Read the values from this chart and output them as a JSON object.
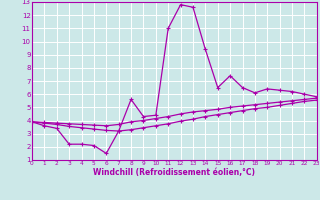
{
  "xlabel": "Windchill (Refroidissement éolien,°C)",
  "xlim": [
    0,
    23
  ],
  "ylim": [
    1,
    13
  ],
  "xticks": [
    0,
    1,
    2,
    3,
    4,
    5,
    6,
    7,
    8,
    9,
    10,
    11,
    12,
    13,
    14,
    15,
    16,
    17,
    18,
    19,
    20,
    21,
    22,
    23
  ],
  "yticks": [
    1,
    2,
    3,
    4,
    5,
    6,
    7,
    8,
    9,
    10,
    11,
    12,
    13
  ],
  "background_color": "#cce8e8",
  "line_color": "#aa00aa",
  "grid_color": "#ffffff",
  "line1_x": [
    0,
    1,
    2,
    3,
    4,
    5,
    6,
    7,
    8,
    9,
    10,
    11,
    12,
    13,
    14,
    15,
    16,
    17,
    18,
    19,
    20,
    21,
    22,
    23
  ],
  "line1_y": [
    3.9,
    3.6,
    3.4,
    2.2,
    2.2,
    2.1,
    1.5,
    3.2,
    5.6,
    4.3,
    4.4,
    11.0,
    12.8,
    12.6,
    9.4,
    6.5,
    7.4,
    6.5,
    6.1,
    6.4,
    6.3,
    6.2,
    6.0,
    5.8
  ],
  "line2_x": [
    0,
    1,
    2,
    3,
    4,
    5,
    6,
    7,
    8,
    9,
    10,
    11,
    12,
    13,
    14,
    15,
    16,
    17,
    18,
    19,
    20,
    21,
    22,
    23
  ],
  "line2_y": [
    3.9,
    3.85,
    3.8,
    3.75,
    3.7,
    3.65,
    3.6,
    3.7,
    3.9,
    4.0,
    4.15,
    4.3,
    4.5,
    4.65,
    4.75,
    4.85,
    5.0,
    5.1,
    5.2,
    5.3,
    5.4,
    5.5,
    5.6,
    5.7
  ],
  "line3_x": [
    0,
    1,
    2,
    3,
    4,
    5,
    6,
    7,
    8,
    9,
    10,
    11,
    12,
    13,
    14,
    15,
    16,
    17,
    18,
    19,
    20,
    21,
    22,
    23
  ],
  "line3_y": [
    3.9,
    3.8,
    3.7,
    3.55,
    3.45,
    3.35,
    3.25,
    3.2,
    3.3,
    3.45,
    3.6,
    3.75,
    3.95,
    4.1,
    4.3,
    4.45,
    4.6,
    4.75,
    4.9,
    5.0,
    5.15,
    5.3,
    5.45,
    5.55
  ]
}
